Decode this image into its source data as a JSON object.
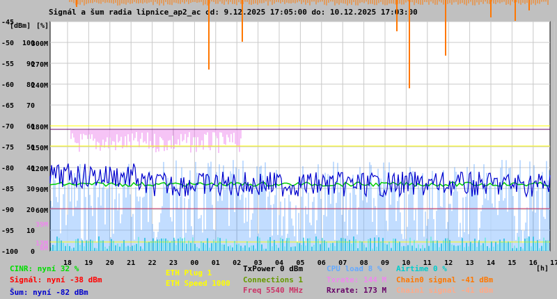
{
  "title": "Signál a šum radia lipnice_ap2_ac od: 9.12.2025 17:05:00 do: 10.12.2025 17:03:00",
  "units": {
    "y": "[dBm]",
    "pct": "[%]",
    "x": "[h]"
  },
  "colors": {
    "background": "#c0c0c0",
    "plot_bg": "#ffffff",
    "grid": "#c8c8c8",
    "cinr": "#00cc00",
    "signal": "#ff0000",
    "noise": "#0000cc",
    "eth_plug": "#ffff00",
    "eth_speed": "#ffff00",
    "txpower": "#000000",
    "connections": "#669900",
    "freq": "#cc3366",
    "cpu": "#66aaff",
    "airtime": "#00cccc",
    "txrate": "#ee88ee",
    "rxrate": "#660066",
    "chain0": "#ff7700",
    "chain1": "#ffaa88"
  },
  "chart_data": {
    "type": "line",
    "title": "Signál a šum radia lipnice_ap2_ac od: 9.12.2025 17:05:00 do: 10.12.2025 17:03:00",
    "x_ticks": [
      "18",
      "19",
      "20",
      "21",
      "22",
      "23",
      "00",
      "01",
      "02",
      "03",
      "04",
      "05",
      "06",
      "07",
      "08",
      "09",
      "10",
      "11",
      "12",
      "13",
      "14",
      "15",
      "16",
      "17"
    ],
    "y_ticks_dbm": [
      "-45",
      "-50",
      "-55",
      "-60",
      "-65",
      "-70",
      "-75",
      "-80",
      "-85",
      "-90",
      "-95",
      "-100"
    ],
    "y_ticks_pct": [
      "100",
      "90",
      "80",
      "70",
      "60",
      "50",
      "40",
      "30",
      "20",
      "10",
      "0"
    ],
    "y_ticks_rate": [
      "300M",
      "270M",
      "240M",
      "180M",
      "150M",
      "120M",
      "90M",
      "60M",
      "39M",
      "13M",
      "6M"
    ],
    "ylim_dbm": [
      -100,
      -45
    ],
    "grid": true,
    "series": [
      {
        "name": "CINR",
        "approx_value_pct": 32
      },
      {
        "name": "Signál",
        "approx_value_dbm": -38
      },
      {
        "name": "Šum",
        "approx_value_dbm": -82
      },
      {
        "name": "Txrate",
        "approx_value_mbps": 144
      },
      {
        "name": "Rxrate",
        "approx_value_mbps": 173
      },
      {
        "name": "Chain0 signal",
        "approx_value_dbm": -41
      }
    ]
  },
  "legend": {
    "cinr": "CINR: nyní 32 %",
    "signal": "Signál: nyní -38 dBm",
    "noise": "Šum: nyní -82 dBm",
    "eth_plug": "ETH Plug 1",
    "eth_speed": "ETH Speed 1000",
    "txpower": "TxPower 0 dBm",
    "connections": "Connections 1",
    "freq": "Freq 5540 MHz",
    "cpu": "CPU load 8 %",
    "txrate": "Txrate: 144 M",
    "rxrate": "Rxrate: 173 M",
    "airtime": "Airtime 0 %",
    "chain0": "Chain0 signal -41 dBm",
    "chain1": "Chain1 signal -41 dBm"
  }
}
